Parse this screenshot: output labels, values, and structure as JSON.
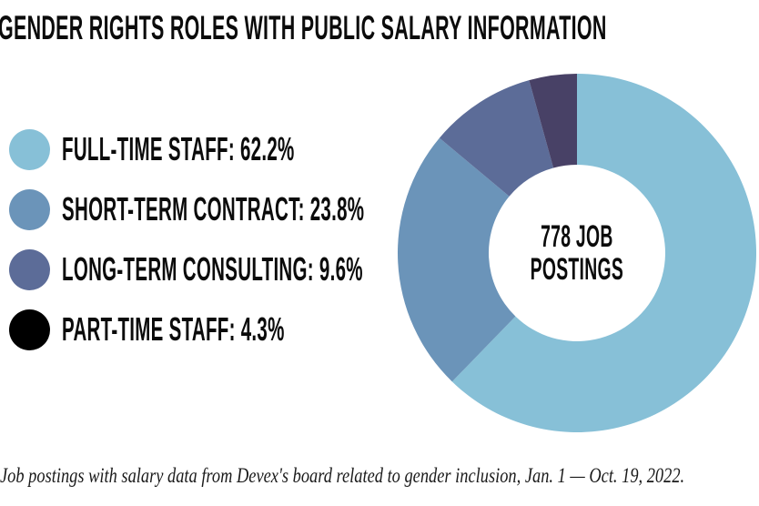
{
  "title": "GENDER RIGHTS ROLES WITH PUBLIC SALARY INFORMATION",
  "legend": {
    "items": [
      {
        "text": "FULL-TIME STAFF: 62.2%",
        "dot_color": "#87c0d7"
      },
      {
        "text": "SHORT-TERM CONTRACT: 23.8%",
        "dot_color": "#6b94b9"
      },
      {
        "text": "LONG-TERM CONSULTING: 9.6%",
        "dot_color": "#5c6c98"
      },
      {
        "text": "PART-TIME STAFF: 4.3%",
        "dot_color": "#000000"
      }
    ]
  },
  "center_label": {
    "line1": "778 JOB",
    "line2": "POSTINGS"
  },
  "caption": "Job postings with salary data from Devex's board related to gender inclusion, Jan. 1 — Oct. 19, 2022.",
  "chart_data": {
    "type": "pie",
    "subtype": "donut",
    "title": "Gender rights roles with public salary information",
    "categories": [
      "full-time-staff",
      "short-term-contract",
      "long-term-consulting",
      "part-time-staff"
    ],
    "values": [
      62.2,
      23.8,
      9.6,
      4.3
    ],
    "unit": "%",
    "total": 778,
    "total_label": "778 job postings",
    "colors": [
      "#87c0d7",
      "#6b94b9",
      "#5c6c98",
      "#484166"
    ],
    "legend_dot_colors": [
      "#87c0d7",
      "#6b94b9",
      "#5c6c98",
      "#000000"
    ],
    "start_angle_deg": 0,
    "direction": "clockwise",
    "donut_hole_ratio": 0.4924,
    "legend_position": "left",
    "grid": false
  }
}
